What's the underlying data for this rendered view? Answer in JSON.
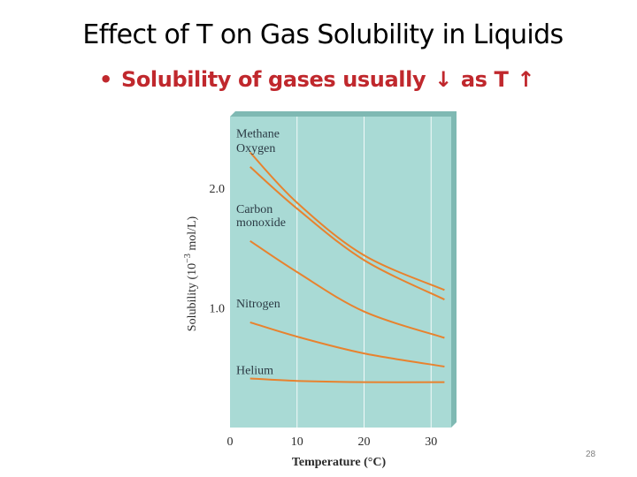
{
  "slide": {
    "title": "Effect of T on Gas Solubility in Liquids",
    "bullet": {
      "prefix": "Solubility of gases usually",
      "decrease_arrow": "↓",
      "middle": "as T",
      "increase_arrow": "↑"
    },
    "page_number": "28"
  },
  "colors": {
    "plot_background": "#a9dad5",
    "curve": "#e8822e",
    "bullet_text": "#c0282d",
    "plot_edge": "#8fc4bf"
  },
  "chart_data": {
    "type": "line",
    "title": "",
    "xlabel": "Temperature (°C)",
    "ylabel": "Solubility (10⁻³ mol/L)",
    "xlim": [
      0,
      33
    ],
    "ylim": [
      0,
      2.6
    ],
    "xticks": [
      0,
      10,
      20,
      30
    ],
    "yticks": [
      1.0,
      2.0
    ],
    "ytick_labels": [
      "1.0",
      "2.0"
    ],
    "grid": true,
    "series": [
      {
        "name": "Methane",
        "x": [
          3,
          10,
          20,
          32
        ],
        "y": [
          2.3,
          1.88,
          1.44,
          1.15
        ]
      },
      {
        "name": "Oxygen",
        "x": [
          3,
          10,
          20,
          32
        ],
        "y": [
          2.18,
          1.83,
          1.4,
          1.07
        ]
      },
      {
        "name": "Carbon monoxide",
        "x": [
          3,
          10,
          20,
          32
        ],
        "y": [
          1.56,
          1.3,
          0.97,
          0.75
        ]
      },
      {
        "name": "Nitrogen",
        "x": [
          3,
          10,
          20,
          32
        ],
        "y": [
          0.88,
          0.76,
          0.62,
          0.51
        ]
      },
      {
        "name": "Helium",
        "x": [
          3,
          10,
          20,
          32
        ],
        "y": [
          0.41,
          0.39,
          0.38,
          0.38
        ]
      }
    ]
  }
}
